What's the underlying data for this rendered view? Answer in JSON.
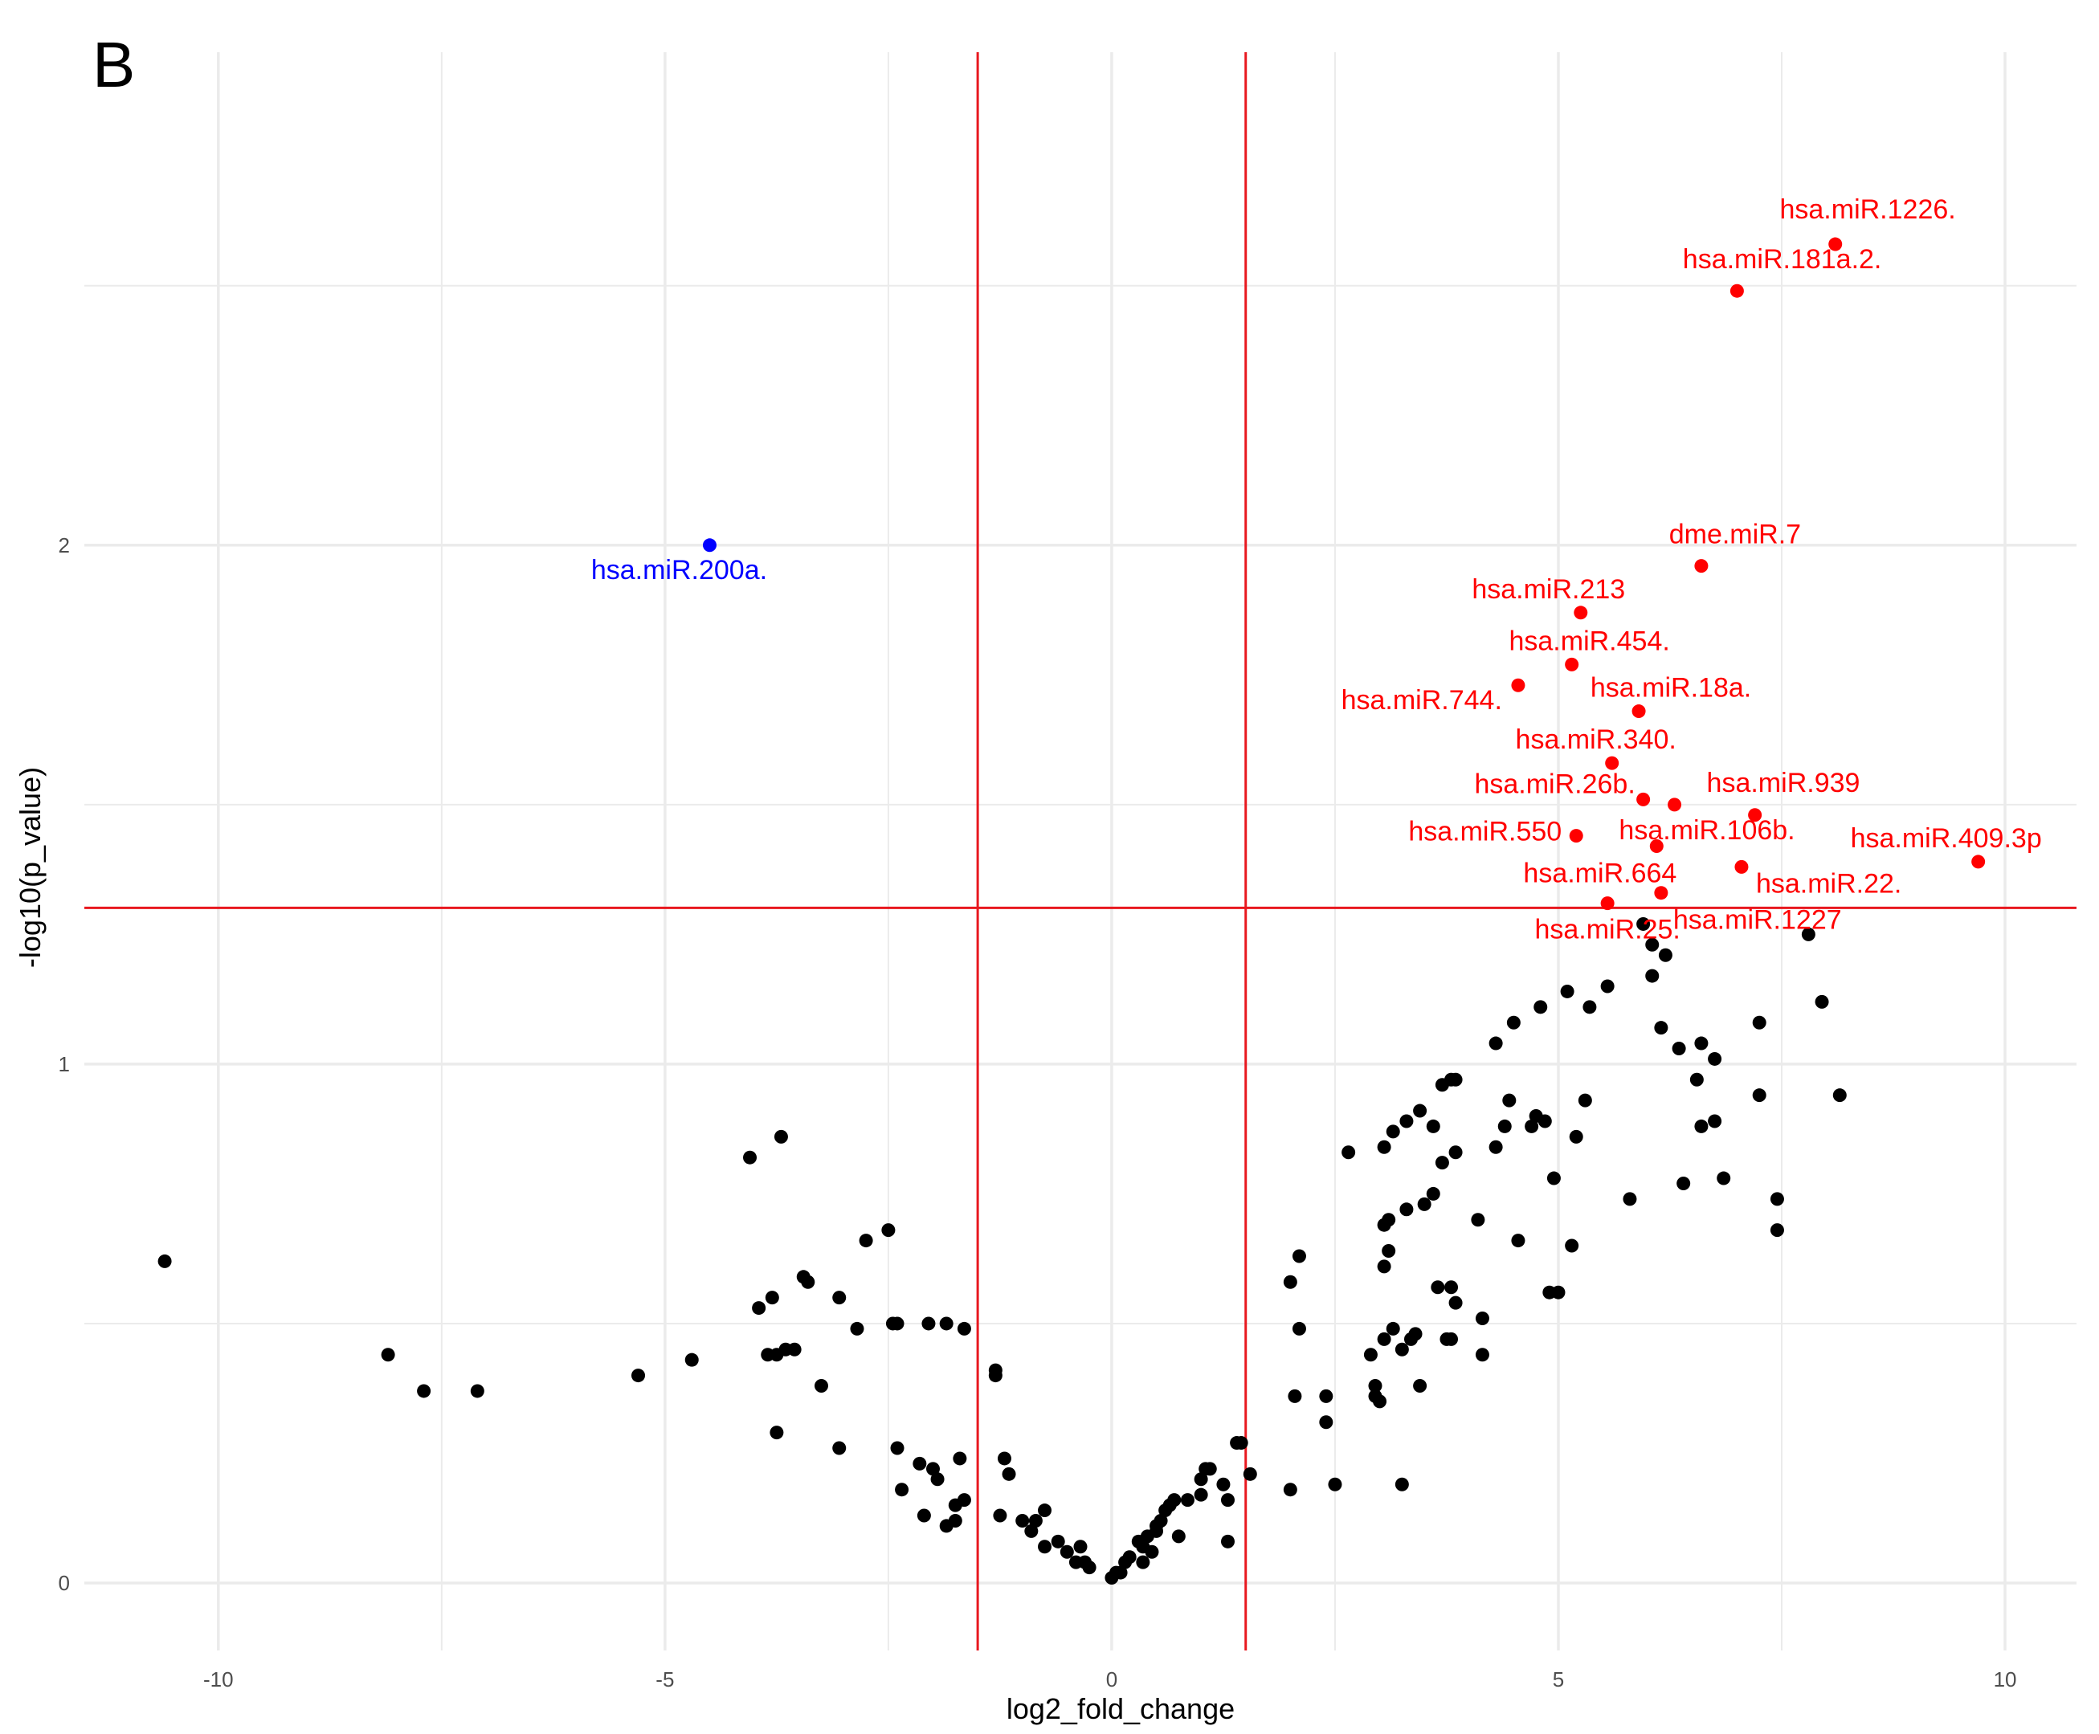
{
  "panel_letter": "B",
  "chart_data": {
    "type": "scatter",
    "title": "",
    "xlabel": "log2_fold_change",
    "ylabel": "-log10(p_value)",
    "xlim": [
      -11.5,
      10.8
    ],
    "ylim": [
      -0.13,
      2.95
    ],
    "x_ticks": [
      -10,
      -5,
      0,
      5,
      10
    ],
    "x_tick_labels": [
      "-10",
      "-5",
      "0",
      "5",
      "10"
    ],
    "y_ticks": [
      0,
      1,
      2
    ],
    "y_tick_labels": [
      "0",
      "1",
      "2"
    ],
    "grid": true,
    "thresholds": {
      "x": [
        -1.5,
        1.5
      ],
      "y": 1.301
    },
    "colors": {
      "up": "#ff0000",
      "down": "#0000ff",
      "ns": "#000000",
      "threshold": "#e8181f",
      "grid": "#ebebeb"
    },
    "labeled_points": [
      {
        "label": "hsa.miR.1226.",
        "x": 8.1,
        "y": 2.58,
        "group": "up",
        "anchor": "end",
        "dx": 150,
        "dy": -32
      },
      {
        "label": "hsa.miR.181a.2.",
        "x": 7.0,
        "y": 2.49,
        "group": "up",
        "anchor": "end",
        "dx": 180,
        "dy": -28
      },
      {
        "label": "hsa.miR.200a.",
        "x": -4.5,
        "y": 2.0,
        "group": "down",
        "anchor": "middle",
        "dx": -38,
        "dy": 42
      },
      {
        "label": "dme.miR.7",
        "x": 6.6,
        "y": 1.96,
        "group": "up",
        "anchor": "middle",
        "dx": 42,
        "dy": -28
      },
      {
        "label": "hsa.miR.213",
        "x": 5.25,
        "y": 1.87,
        "group": "up",
        "anchor": "middle",
        "dx": -40,
        "dy": -18
      },
      {
        "label": "hsa.miR.454.",
        "x": 5.15,
        "y": 1.77,
        "group": "up",
        "anchor": "middle",
        "dx": 22,
        "dy": -18
      },
      {
        "label": "hsa.miR.744.",
        "x": 4.55,
        "y": 1.73,
        "group": "up",
        "anchor": "end",
        "dx": -20,
        "dy": 30
      },
      {
        "label": "hsa.miR.18a.",
        "x": 5.9,
        "y": 1.68,
        "group": "up",
        "anchor": "middle",
        "dx": 40,
        "dy": -18
      },
      {
        "label": "hsa.miR.340.",
        "x": 5.6,
        "y": 1.58,
        "group": "up",
        "anchor": "middle",
        "dx": -20,
        "dy": -18
      },
      {
        "label": "hsa.miR.26b.",
        "x": 5.95,
        "y": 1.51,
        "group": "up",
        "anchor": "middle",
        "dx": -110,
        "dy": -8
      },
      {
        "label": "hsa.miR.939",
        "x": 6.3,
        "y": 1.5,
        "group": "up",
        "anchor": "start",
        "dx": 40,
        "dy": -16
      },
      {
        "label": "hsa.miR.550",
        "x": 5.2,
        "y": 1.44,
        "group": "up",
        "anchor": "end",
        "dx": -18,
        "dy": 6
      },
      {
        "label": "hsa.miR.106b.",
        "x": 7.2,
        "y": 1.48,
        "group": "up",
        "anchor": "end",
        "dx": 50,
        "dy": 30
      },
      {
        "label": "hsa.miR.409.3p",
        "x": 9.7,
        "y": 1.39,
        "group": "up",
        "anchor": "middle",
        "dx": -40,
        "dy": -18
      },
      {
        "label": "hsa.miR.664",
        "x": 6.1,
        "y": 1.42,
        "group": "up",
        "anchor": "end",
        "dx": 25,
        "dy": 45
      },
      {
        "label": "hsa.miR.22.",
        "x": 7.05,
        "y": 1.38,
        "group": "up",
        "anchor": "start",
        "dx": 18,
        "dy": 32
      },
      {
        "label": "hsa.miR.1227",
        "x": 6.15,
        "y": 1.33,
        "group": "up",
        "anchor": "start",
        "dx": 15,
        "dy": 45
      },
      {
        "label": "hsa.miR.25.",
        "x": 5.55,
        "y": 1.31,
        "group": "up",
        "anchor": "middle",
        "dx": 0,
        "dy": 44
      }
    ],
    "points": [
      [
        -10.6,
        0.62
      ],
      [
        -8.1,
        0.44
      ],
      [
        -7.7,
        0.37
      ],
      [
        -7.1,
        0.37
      ],
      [
        -5.3,
        0.4
      ],
      [
        -4.7,
        0.43
      ],
      [
        -4.05,
        0.82
      ],
      [
        -3.7,
        0.86
      ],
      [
        -3.95,
        0.53
      ],
      [
        -3.8,
        0.55
      ],
      [
        -3.4,
        0.58
      ],
      [
        -3.45,
        0.59
      ],
      [
        -3.85,
        0.44
      ],
      [
        -3.75,
        0.44
      ],
      [
        -3.65,
        0.45
      ],
      [
        -3.55,
        0.45
      ],
      [
        -3.25,
        0.38
      ],
      [
        -3.75,
        0.29
      ],
      [
        -3.05,
        0.55
      ],
      [
        -2.75,
        0.66
      ],
      [
        -2.5,
        0.68
      ],
      [
        -2.85,
        0.49
      ],
      [
        -2.45,
        0.5
      ],
      [
        -2.4,
        0.5
      ],
      [
        -2.05,
        0.5
      ],
      [
        -1.85,
        0.5
      ],
      [
        -1.65,
        0.49
      ],
      [
        -1.3,
        0.4
      ],
      [
        -1.3,
        0.41
      ],
      [
        -3.05,
        0.26
      ],
      [
        -2.4,
        0.26
      ],
      [
        -2.15,
        0.23
      ],
      [
        -2.0,
        0.22
      ],
      [
        -1.7,
        0.24
      ],
      [
        -2.35,
        0.18
      ],
      [
        -1.95,
        0.2
      ],
      [
        -1.75,
        0.15
      ],
      [
        -1.65,
        0.16
      ],
      [
        -2.1,
        0.13
      ],
      [
        -1.85,
        0.11
      ],
      [
        -1.75,
        0.12
      ],
      [
        -1.2,
        0.24
      ],
      [
        -1.15,
        0.21
      ],
      [
        -1.25,
        0.13
      ],
      [
        -1.0,
        0.12
      ],
      [
        -0.85,
        0.12
      ],
      [
        -0.75,
        0.14
      ],
      [
        -0.9,
        0.1
      ],
      [
        -0.75,
        0.07
      ],
      [
        -0.6,
        0.08
      ],
      [
        -0.5,
        0.06
      ],
      [
        -0.35,
        0.07
      ],
      [
        -0.3,
        0.04
      ],
      [
        -0.4,
        0.04
      ],
      [
        -0.25,
        0.03
      ],
      [
        0.0,
        0.01
      ],
      [
        0.05,
        0.02
      ],
      [
        0.1,
        0.02
      ],
      [
        0.15,
        0.04
      ],
      [
        0.2,
        0.05
      ],
      [
        0.3,
        0.08
      ],
      [
        0.35,
        0.07
      ],
      [
        0.4,
        0.09
      ],
      [
        0.5,
        0.1
      ],
      [
        0.55,
        0.12
      ],
      [
        0.6,
        0.14
      ],
      [
        0.65,
        0.15
      ],
      [
        0.7,
        0.16
      ],
      [
        0.5,
        0.11
      ],
      [
        0.75,
        0.09
      ],
      [
        0.45,
        0.06
      ],
      [
        0.35,
        0.04
      ],
      [
        1.0,
        0.2
      ],
      [
        1.05,
        0.22
      ],
      [
        1.1,
        0.22
      ],
      [
        1.0,
        0.17
      ],
      [
        0.85,
        0.16
      ],
      [
        1.25,
        0.19
      ],
      [
        1.3,
        0.16
      ],
      [
        1.4,
        0.27
      ],
      [
        1.45,
        0.27
      ],
      [
        1.55,
        0.21
      ],
      [
        1.3,
        0.08
      ],
      [
        2.0,
        0.58
      ],
      [
        2.1,
        0.63
      ],
      [
        2.1,
        0.49
      ],
      [
        2.05,
        0.36
      ],
      [
        2.0,
        0.18
      ],
      [
        2.4,
        0.36
      ],
      [
        2.4,
        0.31
      ],
      [
        2.5,
        0.19
      ],
      [
        2.65,
        0.83
      ],
      [
        2.9,
        0.44
      ],
      [
        2.95,
        0.38
      ],
      [
        2.95,
        0.36
      ],
      [
        3.0,
        0.35
      ],
      [
        3.05,
        0.47
      ],
      [
        3.15,
        0.49
      ],
      [
        3.25,
        0.45
      ],
      [
        3.35,
        0.47
      ],
      [
        3.4,
        0.48
      ],
      [
        3.45,
        0.38
      ],
      [
        3.25,
        0.19
      ],
      [
        3.05,
        0.84
      ],
      [
        3.15,
        0.87
      ],
      [
        3.3,
        0.89
      ],
      [
        3.45,
        0.91
      ],
      [
        3.6,
        0.88
      ],
      [
        3.7,
        0.96
      ],
      [
        3.8,
        0.97
      ],
      [
        3.85,
        0.97
      ],
      [
        3.05,
        0.69
      ],
      [
        3.1,
        0.7
      ],
      [
        3.1,
        0.64
      ],
      [
        3.05,
        0.61
      ],
      [
        3.3,
        0.72
      ],
      [
        3.5,
        0.73
      ],
      [
        3.6,
        0.75
      ],
      [
        3.7,
        0.81
      ],
      [
        3.85,
        0.83
      ],
      [
        3.65,
        0.57
      ],
      [
        3.8,
        0.57
      ],
      [
        3.85,
        0.54
      ],
      [
        3.75,
        0.47
      ],
      [
        3.8,
        0.47
      ],
      [
        4.1,
        0.7
      ],
      [
        4.15,
        0.51
      ],
      [
        4.15,
        0.44
      ],
      [
        4.3,
        0.84
      ],
      [
        4.3,
        1.04
      ],
      [
        4.4,
        0.88
      ],
      [
        4.45,
        0.93
      ],
      [
        4.5,
        1.08
      ],
      [
        4.55,
        0.66
      ],
      [
        4.7,
        0.88
      ],
      [
        4.75,
        0.9
      ],
      [
        4.8,
        1.11
      ],
      [
        4.85,
        0.89
      ],
      [
        4.9,
        0.56
      ],
      [
        5.0,
        0.56
      ],
      [
        4.95,
        0.78
      ],
      [
        5.2,
        0.86
      ],
      [
        5.3,
        0.93
      ],
      [
        5.1,
        1.14
      ],
      [
        5.35,
        1.11
      ],
      [
        5.55,
        1.15
      ],
      [
        5.15,
        0.65
      ],
      [
        5.8,
        0.74
      ],
      [
        6.05,
        1.17
      ],
      [
        6.05,
        1.23
      ],
      [
        6.15,
        1.07
      ],
      [
        6.2,
        1.21
      ],
      [
        6.35,
        1.03
      ],
      [
        6.4,
        0.77
      ],
      [
        6.55,
        0.97
      ],
      [
        6.6,
        0.88
      ],
      [
        6.75,
        1.01
      ],
      [
        6.75,
        0.89
      ],
      [
        6.6,
        1.04
      ],
      [
        6.85,
        0.78
      ],
      [
        7.25,
        1.08
      ],
      [
        7.25,
        0.94
      ],
      [
        7.45,
        0.74
      ],
      [
        7.45,
        0.68
      ],
      [
        7.8,
        1.25
      ],
      [
        7.95,
        1.12
      ],
      [
        8.15,
        0.94
      ],
      [
        5.95,
        1.27
      ]
    ]
  }
}
